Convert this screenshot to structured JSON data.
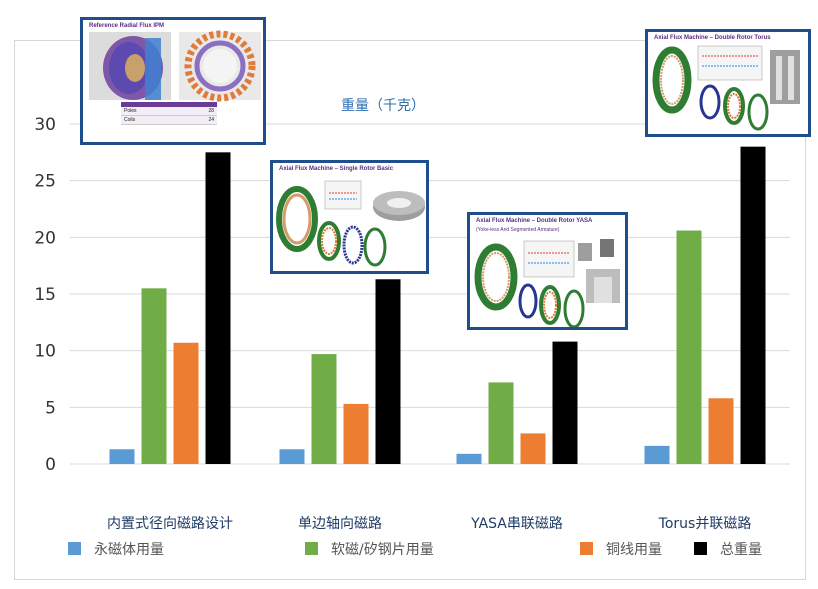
{
  "chart_data": {
    "type": "bar",
    "title": "重量（千克）",
    "xlabel": "",
    "ylabel": "",
    "ylim": [
      0,
      30
    ],
    "yticks": [
      0,
      5,
      10,
      15,
      20,
      25,
      30
    ],
    "grid": true,
    "legend_position": "bottom",
    "categories": [
      "内置式径向磁路设计",
      "单边轴向磁路",
      "YASA串联磁路",
      "Torus并联磁路"
    ],
    "series": [
      {
        "name": "永磁体用量",
        "color": "#5b9bd5",
        "values": [
          1.3,
          1.3,
          0.9,
          1.6
        ]
      },
      {
        "name": "软磁/矽钢片用量",
        "color": "#70ad47",
        "values": [
          15.5,
          9.7,
          7.2,
          20.6
        ]
      },
      {
        "name": "铜线用量",
        "color": "#ed7d31",
        "values": [
          10.7,
          5.3,
          2.7,
          5.8
        ]
      },
      {
        "name": "总重量",
        "color": "#000000",
        "values": [
          27.5,
          16.3,
          10.8,
          28.0
        ]
      }
    ]
  },
  "insets": {
    "ipm": {
      "title": "Reference Radial Flux IPM",
      "table": [
        {
          "label": "Poles",
          "value": "28"
        },
        {
          "label": "Coils",
          "value": "24"
        }
      ]
    },
    "single": {
      "title": "Axial Flux Machine – Single Rotor Basic"
    },
    "yasa": {
      "title": "Axial Flux Machine – Double Rotor YASA",
      "subtitle": "(Yoke-less And Segmented Armature)"
    },
    "torus": {
      "title": "Axial Flux Machine – Double Rotor Torus"
    }
  },
  "colors": {
    "frame_border": "#1f4e8c",
    "gridline": "#d9d9d9",
    "axis_text": "#333333",
    "category_text": "#1f3b66"
  }
}
